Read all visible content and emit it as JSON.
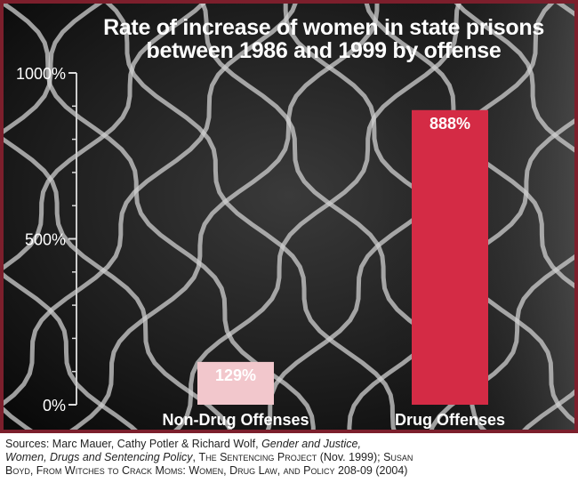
{
  "colors": {
    "frame": "#7c1f2c",
    "background": "#111111",
    "drug_bar": "#d42b45",
    "non_drug_bar": "#f2c7cc",
    "text": "#ffffff"
  },
  "chart_data": {
    "type": "bar",
    "title": "Rate of increase of women in state prisons between 1986 and 1999 by offense",
    "title_lines": [
      "Rate of increase of women in state prisons",
      "between 1986 and 1999 by offense"
    ],
    "categories": [
      "Non-Drug Offenses",
      "Drug Offenses"
    ],
    "values": [
      129,
      888
    ],
    "data_labels": [
      "129%",
      "888%"
    ],
    "bar_colors": [
      "#f2c7cc",
      "#d42b45"
    ],
    "ylim": [
      0,
      1000
    ],
    "yticks": [
      0,
      500,
      1000
    ],
    "ytick_labels": [
      "0%",
      "500%",
      "1000%"
    ],
    "minor_tick_step": 100,
    "grid": false,
    "xlabel": "",
    "ylabel": ""
  },
  "sources": {
    "line1_plain": "Sources: Marc Mauer, Cathy Potler & Richard Wolf, ",
    "line1_italic": "Gender and Justice,",
    "line2_italic": "Women, Drugs and Sentencing Policy",
    "line2_plain": ", ",
    "line2_sc": "The Sentencing Project",
    "line2_plain2": " (Nov. 1999); ",
    "line2_sc2": "Susan",
    "line3_sc": "Boyd, From Witches to Crack Moms:  Women, Drug Law, and Policy",
    "line3_plain": " 208-09 (2004)"
  }
}
